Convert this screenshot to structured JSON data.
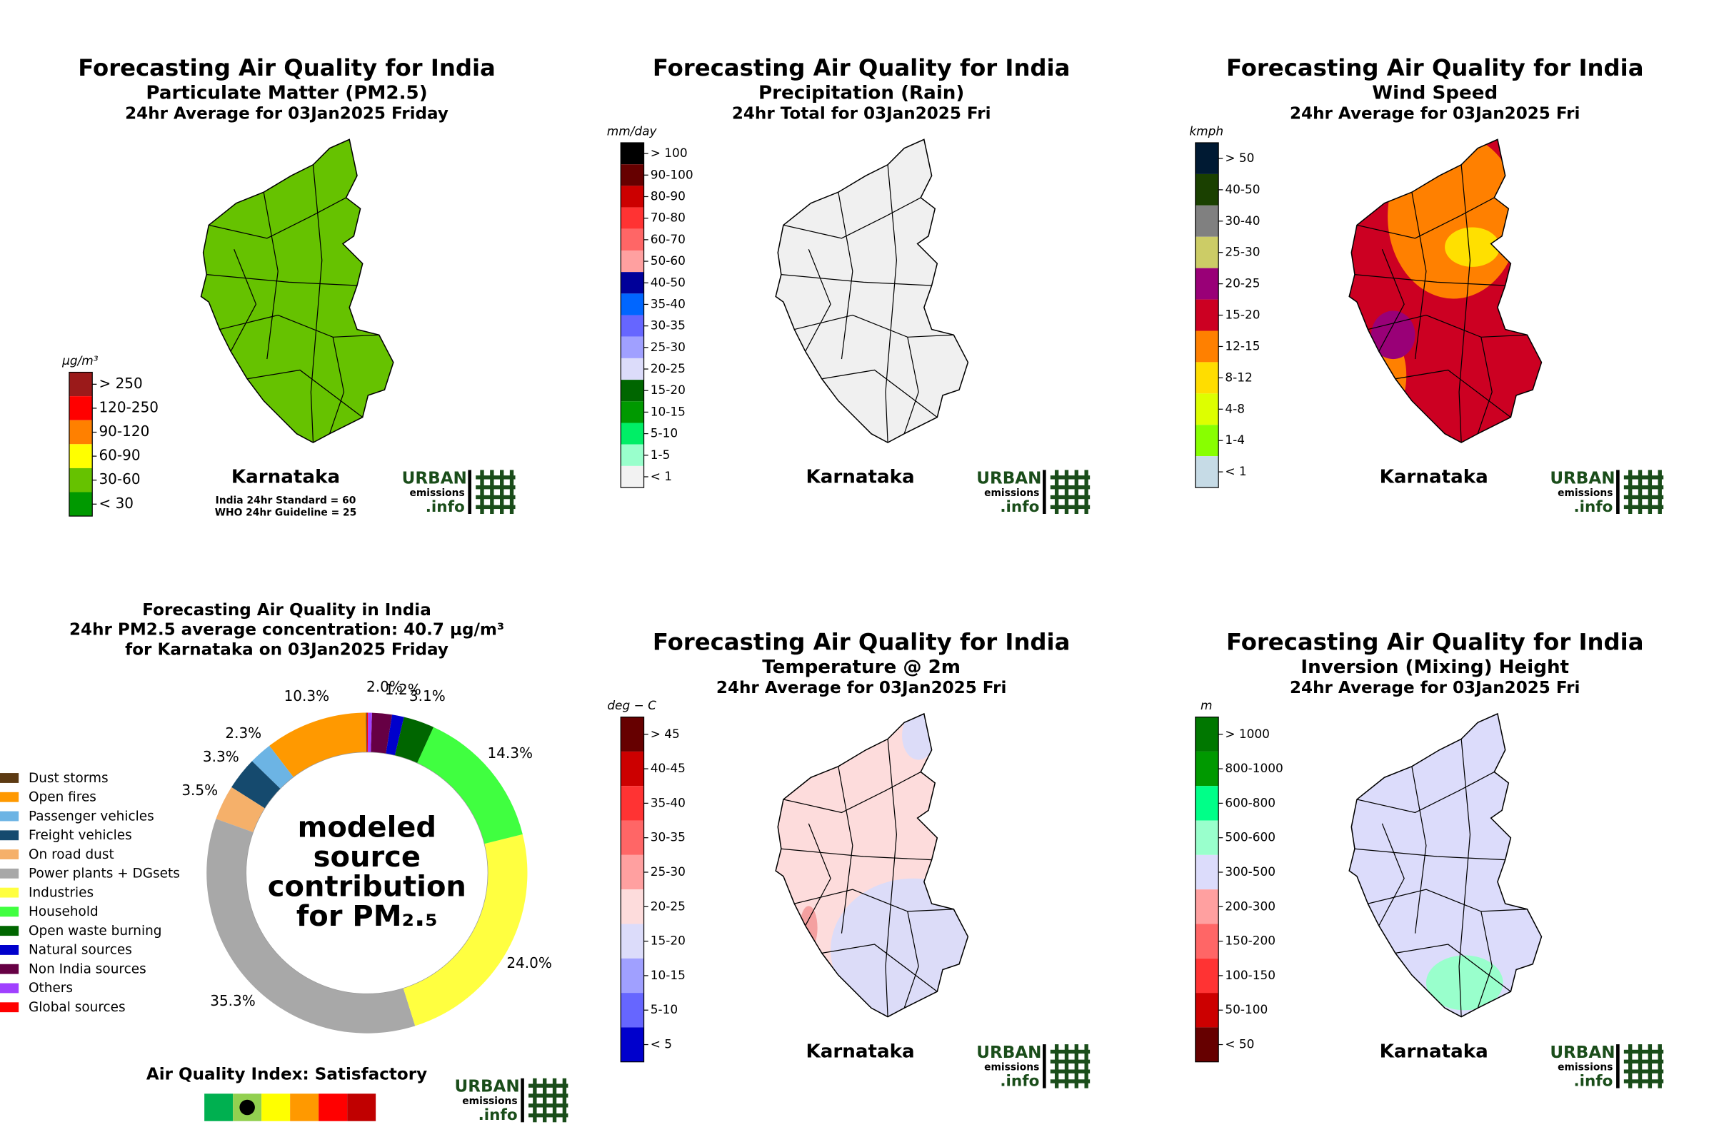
{
  "maps": [
    {
      "title": "Forecasting Air Quality for India",
      "subtitle": "Particulate Matter (PM2.5)",
      "period": "24hr Average for 03Jan2025 Friday",
      "region": "Karnataka",
      "unit": "μg/m³",
      "legend": {
        "labels": [
          "> 250",
          "120-250",
          "90-120",
          "60-90",
          "30-60",
          "< 30"
        ],
        "colors": [
          "#9b1a1a",
          "#ff0000",
          "#ff8000",
          "#ffff00",
          "#66c200",
          "#009900"
        ]
      },
      "fills": [
        "#66c200"
      ],
      "notes": [
        "India 24hr Standard = 60",
        "WHO 24hr Guideline = 25"
      ]
    },
    {
      "title": "Forecasting Air Quality for India",
      "subtitle": "Precipitation (Rain)",
      "period": "24hr Total for 03Jan2025 Fri",
      "region": "Karnataka",
      "unit": "mm/day",
      "legend": {
        "labels": [
          "> 100",
          "90-100",
          "80-90",
          "70-80",
          "60-70",
          "50-60",
          "40-50",
          "35-40",
          "30-35",
          "25-30",
          "20-25",
          "15-20",
          "10-15",
          "5-10",
          "1-5",
          "< 1"
        ],
        "colors": [
          "#000000",
          "#660000",
          "#cc0000",
          "#ff3333",
          "#ff6666",
          "#ffa0a0",
          "#000099",
          "#0066ff",
          "#6666ff",
          "#a0a0ff",
          "#dcdcfa",
          "#006600",
          "#009900",
          "#00ee66",
          "#99ffcc",
          "#f2f2f2"
        ]
      },
      "fills": [
        "#f0f0f0"
      ]
    },
    {
      "title": "Forecasting Air Quality for India",
      "subtitle": "Wind Speed",
      "period": "24hr Average for 03Jan2025 Fri",
      "region": "Karnataka",
      "unit": "kmph",
      "legend": {
        "labels": [
          "> 50",
          "40-50",
          "30-40",
          "25-30",
          "20-25",
          "15-20",
          "12-15",
          "8-12",
          "4-8",
          "1-4",
          "< 1"
        ],
        "colors": [
          "#001a33",
          "#1a4000",
          "#808080",
          "#cccc66",
          "#990077",
          "#cc0022",
          "#ff8000",
          "#ffdd00",
          "#ddff00",
          "#88ff00",
          "#c6dbe6"
        ]
      },
      "fills": [
        "#cc0022",
        "#ff8000",
        "#ffe000",
        "#990077"
      ]
    },
    {
      "title": "Forecasting Air Quality for India",
      "subtitle": "Temperature @ 2m",
      "period": "24hr Average for 03Jan2025 Fri",
      "region": "Karnataka",
      "unit": "deg − C",
      "legend": {
        "labels": [
          "> 45",
          "40-45",
          "35-40",
          "30-35",
          "25-30",
          "20-25",
          "15-20",
          "10-15",
          "5-10",
          "< 5"
        ],
        "colors": [
          "#660000",
          "#cc0000",
          "#ff3333",
          "#ff6666",
          "#ffa0a0",
          "#fddcdc",
          "#dcdcfa",
          "#a0a0ff",
          "#6666ff",
          "#0000cc"
        ]
      },
      "fills": [
        "#fddcdc",
        "#dcdcf8",
        "#f4a0a0"
      ]
    },
    {
      "title": "Forecasting Air Quality for India",
      "subtitle": "Inversion (Mixing) Height",
      "period": "24hr Average for 03Jan2025 Fri",
      "region": "Karnataka",
      "unit": "m",
      "legend": {
        "labels": [
          "> 1000",
          "800-1000",
          "600-800",
          "500-600",
          "300-500",
          "200-300",
          "150-200",
          "100-150",
          "50-100",
          "< 50"
        ],
        "colors": [
          "#007700",
          "#009900",
          "#00ff88",
          "#99ffcc",
          "#dcdcfb",
          "#ffa0a0",
          "#ff6666",
          "#ff3333",
          "#cc0000",
          "#660000"
        ]
      },
      "fills": [
        "#dcdcfb",
        "#99ffcc"
      ]
    }
  ],
  "logo": {
    "line1": "URBAN",
    "line2": "emissions",
    "line3": ".info"
  },
  "chart_data": {
    "type": "donut",
    "title": [
      "Forecasting Air Quality in India",
      "24hr PM2.5 average concentration: 40.7 μg/m³",
      "for Karnataka on 03Jan2025 Friday"
    ],
    "center_text": [
      "modeled",
      "source",
      "contribution",
      "for PM₂.₅"
    ],
    "categories": [
      "Dust storms",
      "Open fires",
      "Passenger vehicles",
      "Freight vehicles",
      "On road dust",
      "Power plants + DGsets",
      "Industries",
      "Household",
      "Open waste burning",
      "Natural sources",
      "Non India sources",
      "Others",
      "Global sources"
    ],
    "colors": [
      "#5c3a12",
      "#ff9900",
      "#6cb4e4",
      "#154a6e",
      "#f5b06a",
      "#a8a8a8",
      "#ffff40",
      "#40ff40",
      "#006600",
      "#0000cc",
      "#660044",
      "#a040ff",
      "#ff0000"
    ],
    "values": [
      0.1,
      10.3,
      2.3,
      3.3,
      3.5,
      35.3,
      24.0,
      14.3,
      3.1,
      1.2,
      2.0,
      0.4,
      0.1
    ],
    "value_labels": [
      null,
      "10.3%",
      "2.3%",
      "3.3%",
      "3.5%",
      "35.3%",
      "24.0%",
      "14.3%",
      "3.1%",
      "1.2%",
      "2.0%",
      null,
      null
    ]
  },
  "aqi": {
    "title": "Air Quality Index: Satisfactory",
    "colors": [
      "#00b050",
      "#92d050",
      "#ffff00",
      "#ff9900",
      "#ff0000",
      "#c00000"
    ],
    "level": 1
  }
}
